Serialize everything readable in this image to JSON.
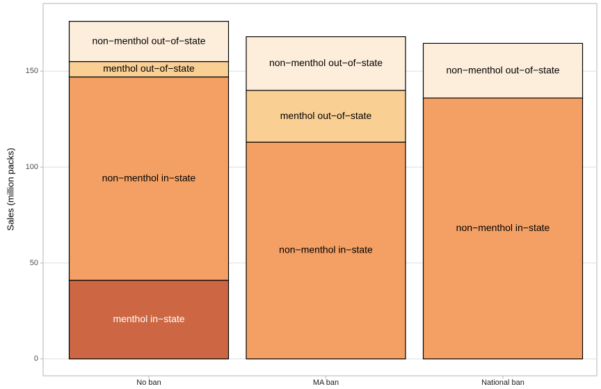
{
  "chart_data": {
    "type": "stacked_bar",
    "y_label": "Sales (million packs)",
    "categories": [
      "No ban",
      "MA ban",
      "National ban"
    ],
    "series": [
      {
        "name": "menthol in−state",
        "color": "#cd6743",
        "values": [
          41,
          0,
          0
        ]
      },
      {
        "name": "non−menthol in−state",
        "color": "#f4a065",
        "values": [
          106,
          113,
          136
        ]
      },
      {
        "name": "menthol out−of−state",
        "color": "#f9cf94",
        "values": [
          8,
          27,
          0
        ]
      },
      {
        "name": "non−menthol out−of−state",
        "color": "#fdeedc",
        "values": [
          21,
          28,
          28.5
        ]
      }
    ],
    "ylim": [
      -8.8,
      185.3
    ],
    "yticks": [
      0,
      50,
      100,
      150
    ],
    "grid": true
  }
}
